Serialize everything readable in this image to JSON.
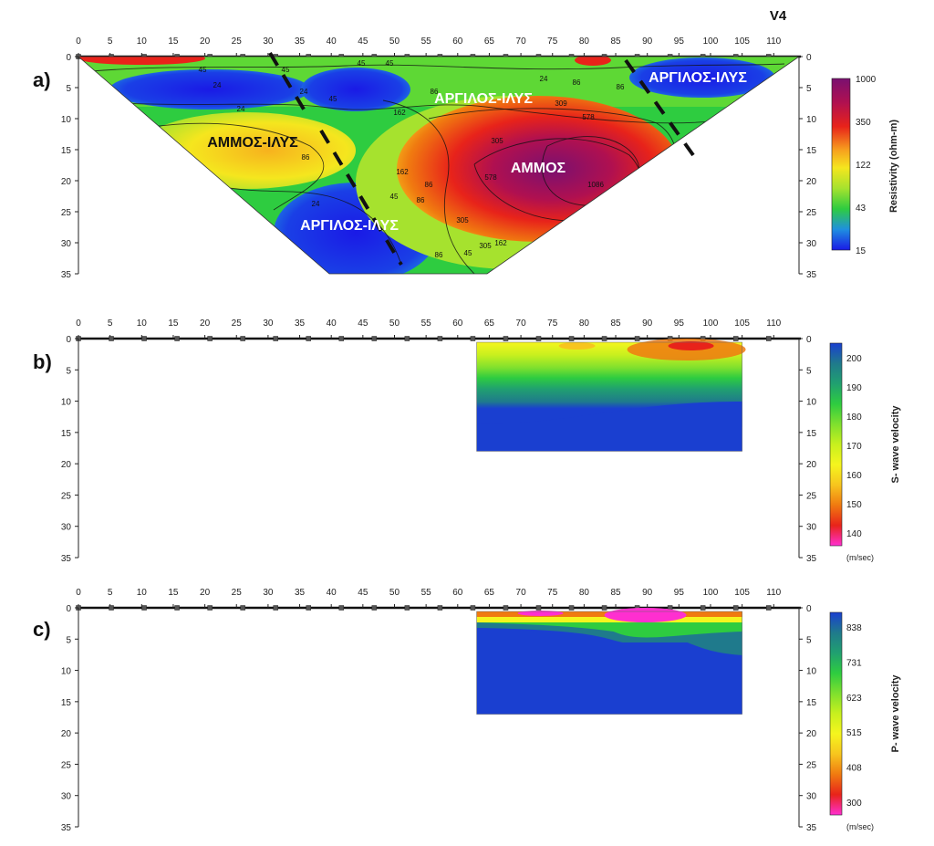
{
  "figure_tag": "V4",
  "x_ticks": [
    0,
    5,
    10,
    15,
    20,
    25,
    30,
    35,
    40,
    45,
    50,
    55,
    60,
    65,
    70,
    75,
    80,
    85,
    90,
    95,
    100,
    105,
    110
  ],
  "depth_ticks": [
    0,
    5,
    10,
    15,
    20,
    25,
    30,
    35
  ],
  "colors": {
    "resistivity_scale": [
      "#1a1ae6",
      "#1f8fe0",
      "#2ecc40",
      "#a6e22e",
      "#f5e61e",
      "#f7a21e",
      "#e8231a",
      "#b01050",
      "#7a1070"
    ],
    "s_wave_scale": [
      "#ff2fd0",
      "#e8231a",
      "#f07a10",
      "#f7c51e",
      "#f5f51e",
      "#c8f01e",
      "#7fe02e",
      "#2ecc40",
      "#20a070",
      "#1f7a8c",
      "#1a3fd0"
    ],
    "p_wave_scale": [
      "#ff2fd0",
      "#e8231a",
      "#f07a10",
      "#f7c51e",
      "#f5f51e",
      "#c8f01e",
      "#7fe02e",
      "#2ecc40",
      "#20a070",
      "#1f7a8c",
      "#1a3fd0"
    ]
  },
  "chart_data": [
    {
      "panel_label": "a)",
      "type": "heatmap",
      "title": "",
      "xlabel": "",
      "ylabel": "",
      "xlim": [
        0,
        114
      ],
      "ylim": [
        35,
        0
      ],
      "colorbar": {
        "label": "Resistivity (ohm-m)",
        "ticks": [
          "1000",
          "350",
          "122",
          "43",
          "15"
        ]
      },
      "contour_labels": [
        "45",
        "24",
        "45",
        "45",
        "86",
        "24",
        "45",
        "24",
        "162",
        "305",
        "86",
        "86",
        "24",
        "45",
        "305",
        "578",
        "309",
        "578",
        "1086",
        "578",
        "305",
        "162",
        "86",
        "45",
        "45",
        "24",
        "86",
        "86",
        "86",
        "162"
      ],
      "annotations": [
        "ΑΜΜΟΣ-ΙΛΥΣ",
        "ΑΡΓΙΛΟΣ-ΙΛΥΣ",
        "ΑΡΓΙΛΟΣ-ΙΛΥΣ",
        "ΑΡΓΙΛΟΣ-ΙΛΥΣ",
        "ΑΜΜΟΣ"
      ],
      "zones": [
        {
          "name": "ΑΡΓΙΛΟΣ-ΙΛΥΣ",
          "x": [
            0,
            60
          ],
          "depth": [
            2,
            9
          ],
          "resistivity_ohm_m": 24
        },
        {
          "name": "ΑΜΜΟΣ-ΙΛΥΣ",
          "x": [
            10,
            35
          ],
          "depth": [
            10,
            20
          ],
          "resistivity_ohm_m": 122
        },
        {
          "name": "ΑΡΓΙΛΟΣ-ΙΛΥΣ",
          "x": [
            30,
            55
          ],
          "depth": [
            20,
            35
          ],
          "resistivity_ohm_m": 15
        },
        {
          "name": "ΑΜΜΟΣ",
          "x": [
            50,
            90
          ],
          "depth": [
            10,
            30
          ],
          "resistivity_ohm_m": 1086
        },
        {
          "name": "ΑΡΓΙΛΟΣ-ΙΛΥΣ",
          "x": [
            85,
            114
          ],
          "depth": [
            0,
            12
          ],
          "resistivity_ohm_m": 24
        }
      ]
    },
    {
      "panel_label": "b)",
      "type": "heatmap",
      "title": "",
      "xlabel": "",
      "ylabel": "",
      "xlim": [
        0,
        114
      ],
      "ylim": [
        35,
        0
      ],
      "section_extent": {
        "x": [
          63,
          105
        ],
        "depth": [
          0,
          18
        ]
      },
      "colorbar": {
        "label": "S- wave velocity",
        "unit": "(m/sec)",
        "ticks": [
          "200",
          "190",
          "180",
          "170",
          "160",
          "150",
          "140"
        ]
      },
      "layers": [
        {
          "depth": [
            0,
            2
          ],
          "velocity_m_s": 160
        },
        {
          "depth": [
            2,
            4
          ],
          "velocity_m_s": 170
        },
        {
          "depth": [
            4,
            6
          ],
          "velocity_m_s": 180
        },
        {
          "depth": [
            6,
            8
          ],
          "velocity_m_s": 190
        },
        {
          "depth": [
            8,
            13
          ],
          "velocity_m_s": 195
        },
        {
          "depth": [
            13,
            18
          ],
          "velocity_m_s": 200
        }
      ]
    },
    {
      "panel_label": "c)",
      "type": "heatmap",
      "title": "",
      "xlabel": "",
      "ylabel": "",
      "xlim": [
        0,
        114
      ],
      "ylim": [
        35,
        0
      ],
      "section_extent": {
        "x": [
          63,
          105
        ],
        "depth": [
          0,
          17
        ]
      },
      "colorbar": {
        "label": "P- wave velocity",
        "unit": "(m/sec)",
        "ticks": [
          "838",
          "731",
          "623",
          "515",
          "408",
          "300"
        ]
      },
      "layers": [
        {
          "depth": [
            0,
            1
          ],
          "velocity_m_s": 408
        },
        {
          "depth": [
            1,
            2
          ],
          "velocity_m_s": 515
        },
        {
          "depth": [
            2,
            3.5
          ],
          "velocity_m_s": 731
        },
        {
          "depth": [
            3.5,
            17
          ],
          "velocity_m_s": 900
        }
      ]
    }
  ]
}
